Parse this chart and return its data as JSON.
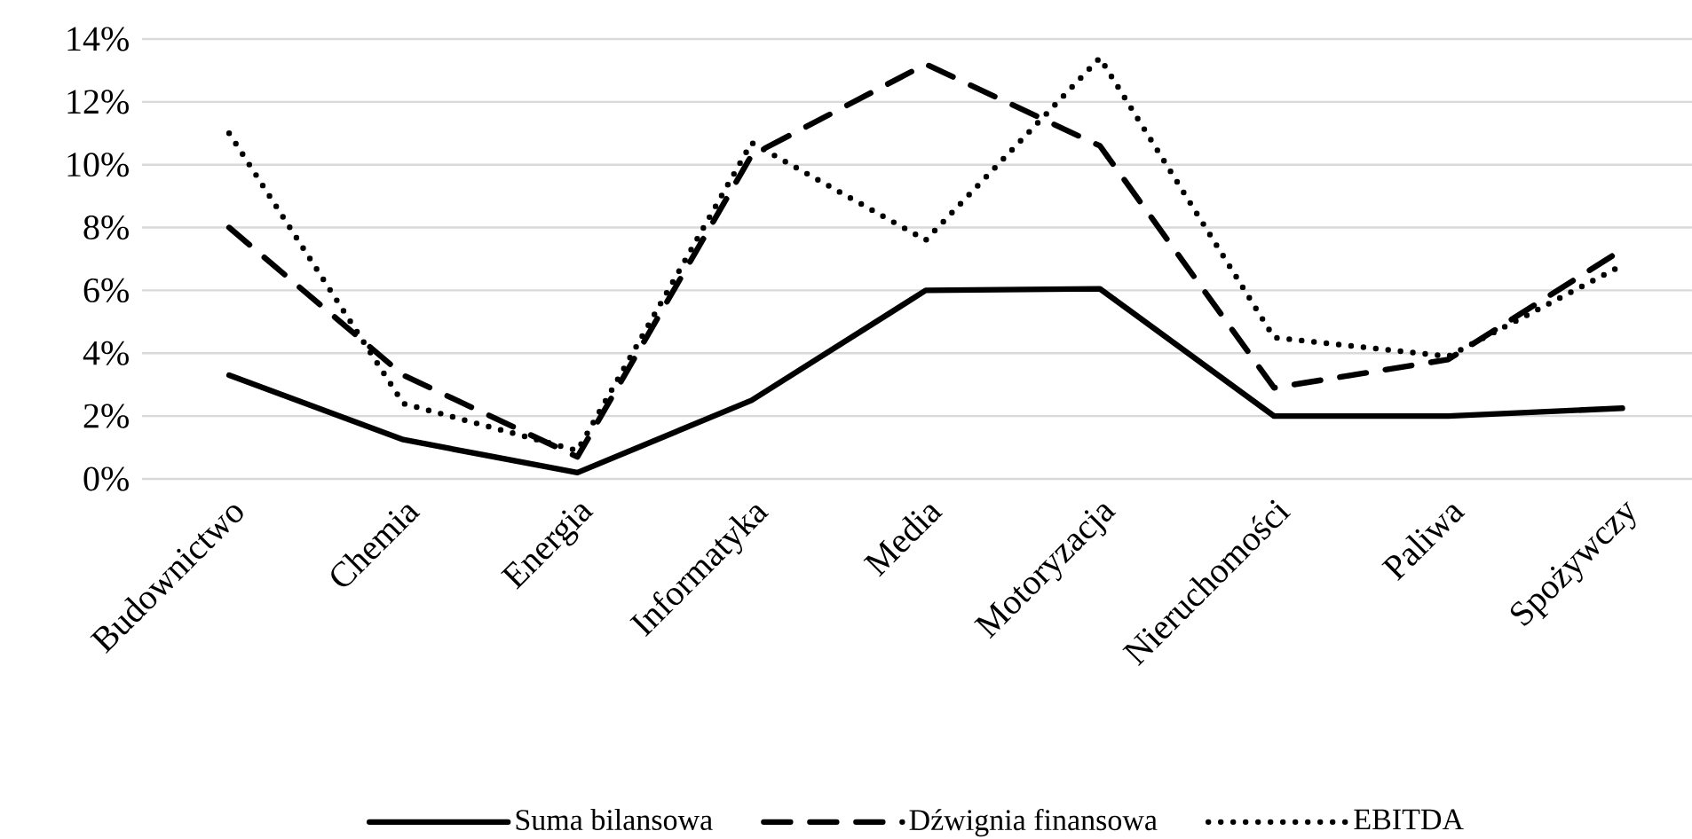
{
  "chart_data": {
    "type": "line",
    "categories": [
      "Budownictwo",
      "Chemia",
      "Energia",
      "Informatyka",
      "Media",
      "Motoryzacja",
      "Nieruchomości",
      "Paliwa",
      "Spożywczy"
    ],
    "series": [
      {
        "name": "Suma bilansowa",
        "color": "#000000",
        "line_style": "solid",
        "values": [
          3.3,
          1.25,
          0.2,
          2.5,
          6.0,
          6.05,
          2.0,
          2.0,
          2.25
        ]
      },
      {
        "name": "Dźwignia finansowa",
        "color": "#000000",
        "line_style": "dashed",
        "values": [
          8.0,
          3.3,
          0.7,
          10.3,
          13.2,
          10.6,
          2.9,
          3.8,
          7.3
        ]
      },
      {
        "name": "EBITDA",
        "color": "#000000",
        "line_style": "dotted",
        "values": [
          11.0,
          2.4,
          0.9,
          10.7,
          7.6,
          13.4,
          4.5,
          3.9,
          6.8
        ]
      }
    ],
    "ylim": [
      0,
      14
    ],
    "yticks": [
      {
        "value": 0,
        "label": "0%"
      },
      {
        "value": 2,
        "label": "2%"
      },
      {
        "value": 4,
        "label": "4%"
      },
      {
        "value": 6,
        "label": "6%"
      },
      {
        "value": 8,
        "label": "8%"
      },
      {
        "value": 10,
        "label": "10%"
      },
      {
        "value": 12,
        "label": "12%"
      },
      {
        "value": 14,
        "label": "14%"
      }
    ],
    "grid": "y",
    "legend": "bottom"
  }
}
